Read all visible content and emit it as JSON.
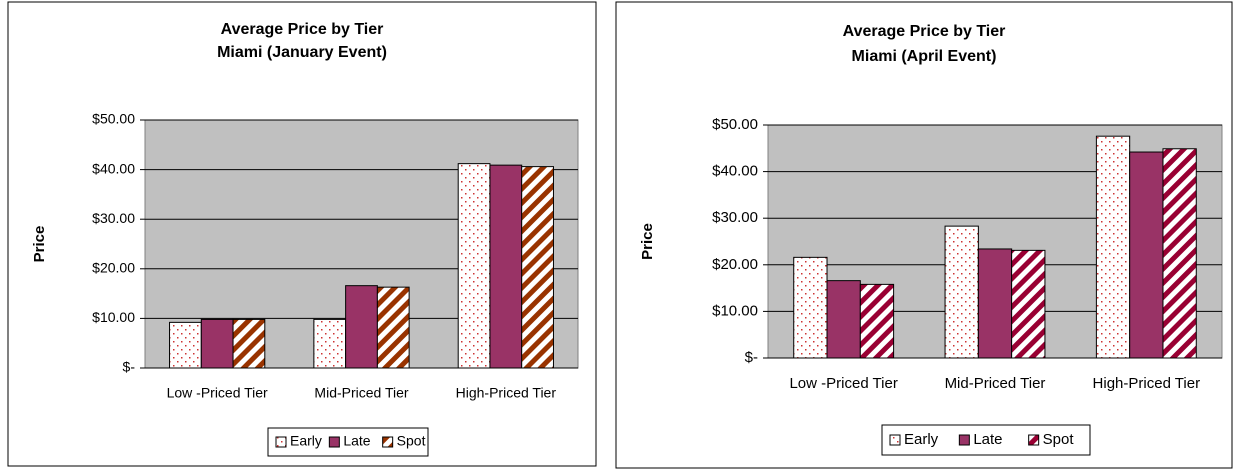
{
  "chart_data": [
    {
      "type": "bar",
      "title": "Average Price by Tier",
      "subtitle": "Miami (January Event)",
      "y_label": "Price",
      "categories": [
        "Low -Priced Tier",
        "Mid-Priced Tier",
        "High-Priced Tier"
      ],
      "series": [
        {
          "name": "Early",
          "color": "#cc3333",
          "pattern": "dots",
          "values": [
            9.2,
            9.8,
            41.2
          ]
        },
        {
          "name": "Late",
          "color": "#993366",
          "pattern": "solid",
          "values": [
            9.8,
            16.6,
            40.9
          ]
        },
        {
          "name": "Spot",
          "color": "#993300",
          "pattern": "stripes",
          "values": [
            9.8,
            16.3,
            40.6
          ]
        }
      ],
      "ylim": [
        0,
        50
      ],
      "yticks": [
        {
          "value": 0,
          "label": "$-"
        },
        {
          "value": 10,
          "label": "$10.00"
        },
        {
          "value": 20,
          "label": "$20.00"
        },
        {
          "value": 30,
          "label": "$30.00"
        },
        {
          "value": 40,
          "label": "$40.00"
        },
        {
          "value": 50,
          "label": "$50.00"
        }
      ],
      "grid": true,
      "legend": "bottom"
    },
    {
      "type": "bar",
      "title": "Average Price by Tier",
      "subtitle": "Miami (April Event)",
      "y_label": "Price",
      "categories": [
        "Low -Priced Tier",
        "Mid-Priced Tier",
        "High-Priced Tier"
      ],
      "series": [
        {
          "name": "Early",
          "color": "#cc3333",
          "pattern": "dots",
          "values": [
            21.6,
            28.3,
            47.6
          ]
        },
        {
          "name": "Late",
          "color": "#993366",
          "pattern": "solid",
          "values": [
            16.6,
            23.4,
            44.2
          ]
        },
        {
          "name": "Spot",
          "color": "#990033",
          "pattern": "stripes",
          "values": [
            15.8,
            23.1,
            44.9
          ]
        }
      ],
      "ylim": [
        0,
        50
      ],
      "yticks": [
        {
          "value": 0,
          "label": "$-"
        },
        {
          "value": 10,
          "label": "$10.00"
        },
        {
          "value": 20,
          "label": "$20.00"
        },
        {
          "value": 30,
          "label": "$30.00"
        },
        {
          "value": 40,
          "label": "$40.00"
        },
        {
          "value": 50,
          "label": "$50.00"
        }
      ],
      "grid": true,
      "legend": "bottom"
    }
  ]
}
